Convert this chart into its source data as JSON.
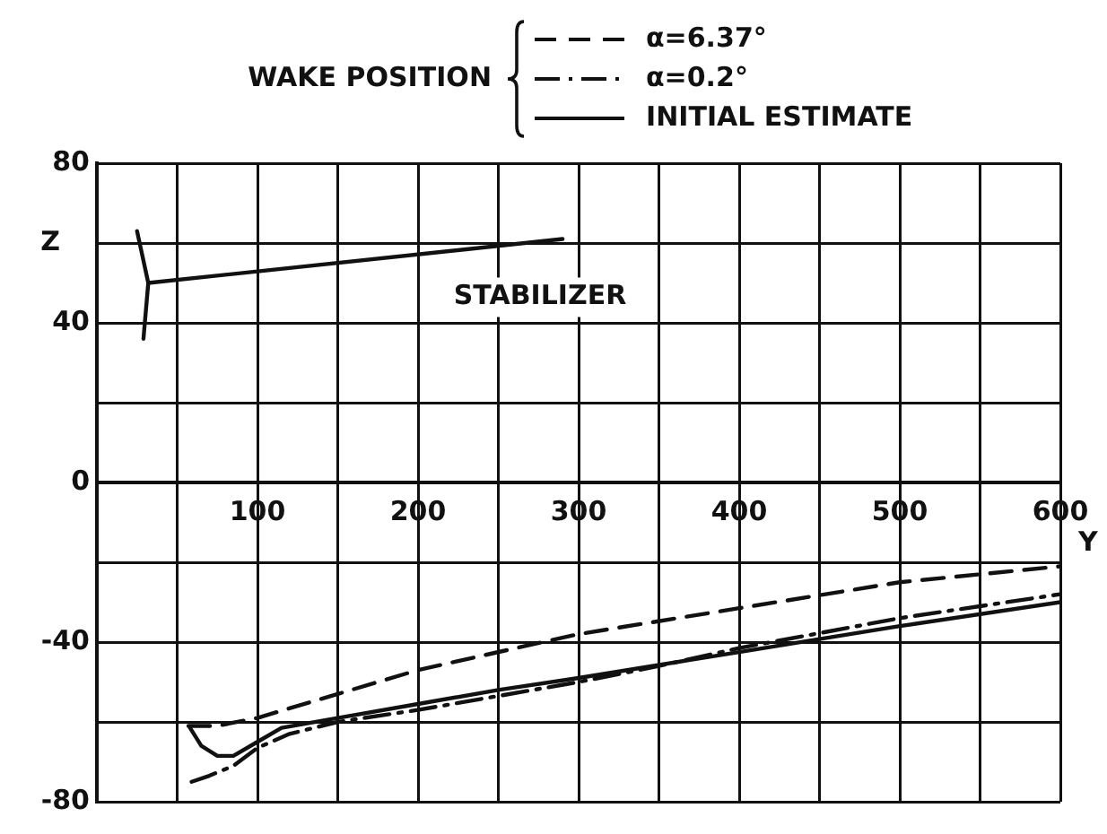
{
  "chart_data": {
    "type": "line",
    "legend_title": "WAKE POSITION",
    "xlabel": "Y",
    "ylabel": "Z",
    "xlim": [
      0,
      600
    ],
    "ylim": [
      -80,
      80
    ],
    "xticks": [
      {
        "value": 0,
        "label": null
      },
      {
        "value": 50,
        "label": null
      },
      100,
      {
        "value": 150,
        "label": null
      },
      200,
      {
        "value": 250,
        "label": null
      },
      300,
      {
        "value": 350,
        "label": null
      },
      400,
      {
        "value": 450,
        "label": null
      },
      500,
      {
        "value": 550,
        "label": null
      },
      600
    ],
    "yticks": [
      -80,
      {
        "value": -60,
        "label": null
      },
      -40,
      {
        "value": -20,
        "label": null
      },
      0,
      {
        "value": 20,
        "label": null
      },
      40,
      {
        "value": 60,
        "label": null
      },
      80
    ],
    "grid": true,
    "legend": "top",
    "marker": "none",
    "series": [
      {
        "name": "α=6.37°",
        "color": "#111111",
        "line_style": "dashed",
        "x": [
          57,
          75,
          100,
          150,
          200,
          300,
          400,
          500,
          550,
          600
        ],
        "values": [
          -61,
          -61,
          -59,
          -53,
          -47,
          -38,
          -31.5,
          -25,
          -23,
          -21
        ]
      },
      {
        "name": "α=0.2°",
        "color": "#111111",
        "line_style": "dashdot",
        "x": [
          59,
          70,
          85,
          100,
          120,
          150,
          200,
          250,
          300,
          350,
          400,
          500,
          600
        ],
        "values": [
          -75,
          -73.5,
          -71,
          -66.5,
          -63,
          -60,
          -57,
          -53.5,
          -50,
          -46,
          -41.5,
          -34,
          -28
        ]
      },
      {
        "name": "INITIAL ESTIMATE",
        "color": "#111111",
        "line_style": "solid",
        "x": [
          58,
          65,
          75,
          85,
          100,
          115,
          150,
          200,
          250,
          300,
          400,
          500,
          600
        ],
        "values": [
          -61.5,
          -66,
          -68.5,
          -68.5,
          -65,
          -61.5,
          -59,
          -55.5,
          -52,
          -49,
          -42.5,
          -36,
          -30
        ]
      },
      {
        "color": "#111111",
        "line_style": "solid",
        "x": [
          25,
          32,
          29
        ],
        "values": [
          63,
          50,
          36
        ]
      },
      {
        "color": "#111111",
        "line_style": "solid",
        "x": [
          32,
          290
        ],
        "values": [
          50,
          61
        ]
      }
    ],
    "annotations": [
      "STABILIZER"
    ]
  }
}
